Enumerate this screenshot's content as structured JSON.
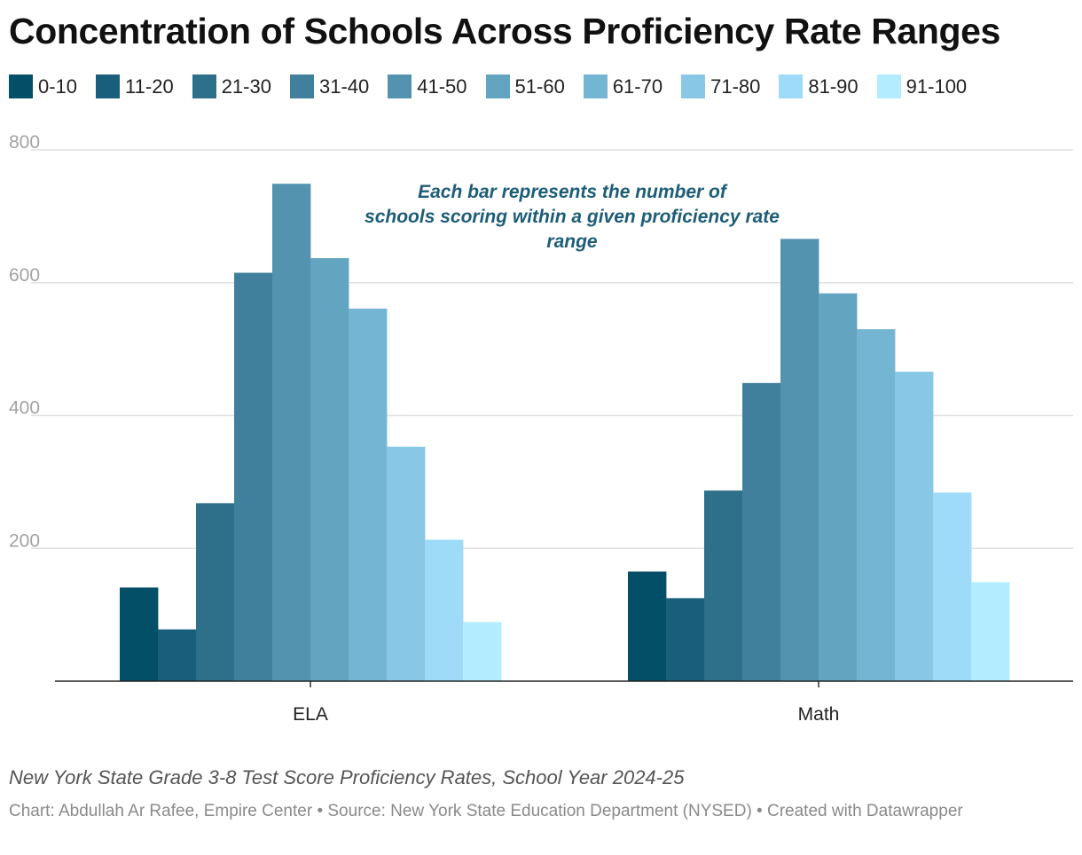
{
  "title": "Concentration of Schools Across Proficiency Rate Ranges",
  "footer": {
    "note": "New York State Grade 3-8 Test Score Proficiency Rates, School Year 2024-25",
    "credit": "Chart: Abdullah Ar Rafee, Empire Center • Source: New York State Education Department (NYSED) • Created with Datawrapper"
  },
  "chart_data": {
    "type": "bar",
    "title": "Concentration of Schools Across Proficiency Rate Ranges",
    "xlabel": "",
    "ylabel": "",
    "categories": [
      "ELA",
      "Math"
    ],
    "ylim": [
      0,
      800
    ],
    "yticks": [
      200,
      400,
      600,
      800
    ],
    "grid": true,
    "legend_position": "top",
    "annotation": "Each bar represents the number of schools scoring within a given proficiency rate range",
    "series": [
      {
        "name": "0-10",
        "color": "#034f67",
        "values": [
          141,
          165
        ]
      },
      {
        "name": "11-20",
        "color": "#195f7b",
        "values": [
          78,
          125
        ]
      },
      {
        "name": "21-30",
        "color": "#2e6f89",
        "values": [
          268,
          287
        ]
      },
      {
        "name": "31-40",
        "color": "#41809c",
        "values": [
          615,
          449
        ]
      },
      {
        "name": "41-50",
        "color": "#5393b0",
        "values": [
          749,
          666
        ]
      },
      {
        "name": "51-60",
        "color": "#63a4c1",
        "values": [
          637,
          584
        ]
      },
      {
        "name": "61-70",
        "color": "#75b5d4",
        "values": [
          561,
          530
        ]
      },
      {
        "name": "71-80",
        "color": "#88c8e6",
        "values": [
          353,
          466
        ]
      },
      {
        "name": "81-90",
        "color": "#9ddbf8",
        "values": [
          213,
          284
        ]
      },
      {
        "name": "91-100",
        "color": "#b3ecff",
        "values": [
          89,
          149
        ]
      }
    ]
  }
}
